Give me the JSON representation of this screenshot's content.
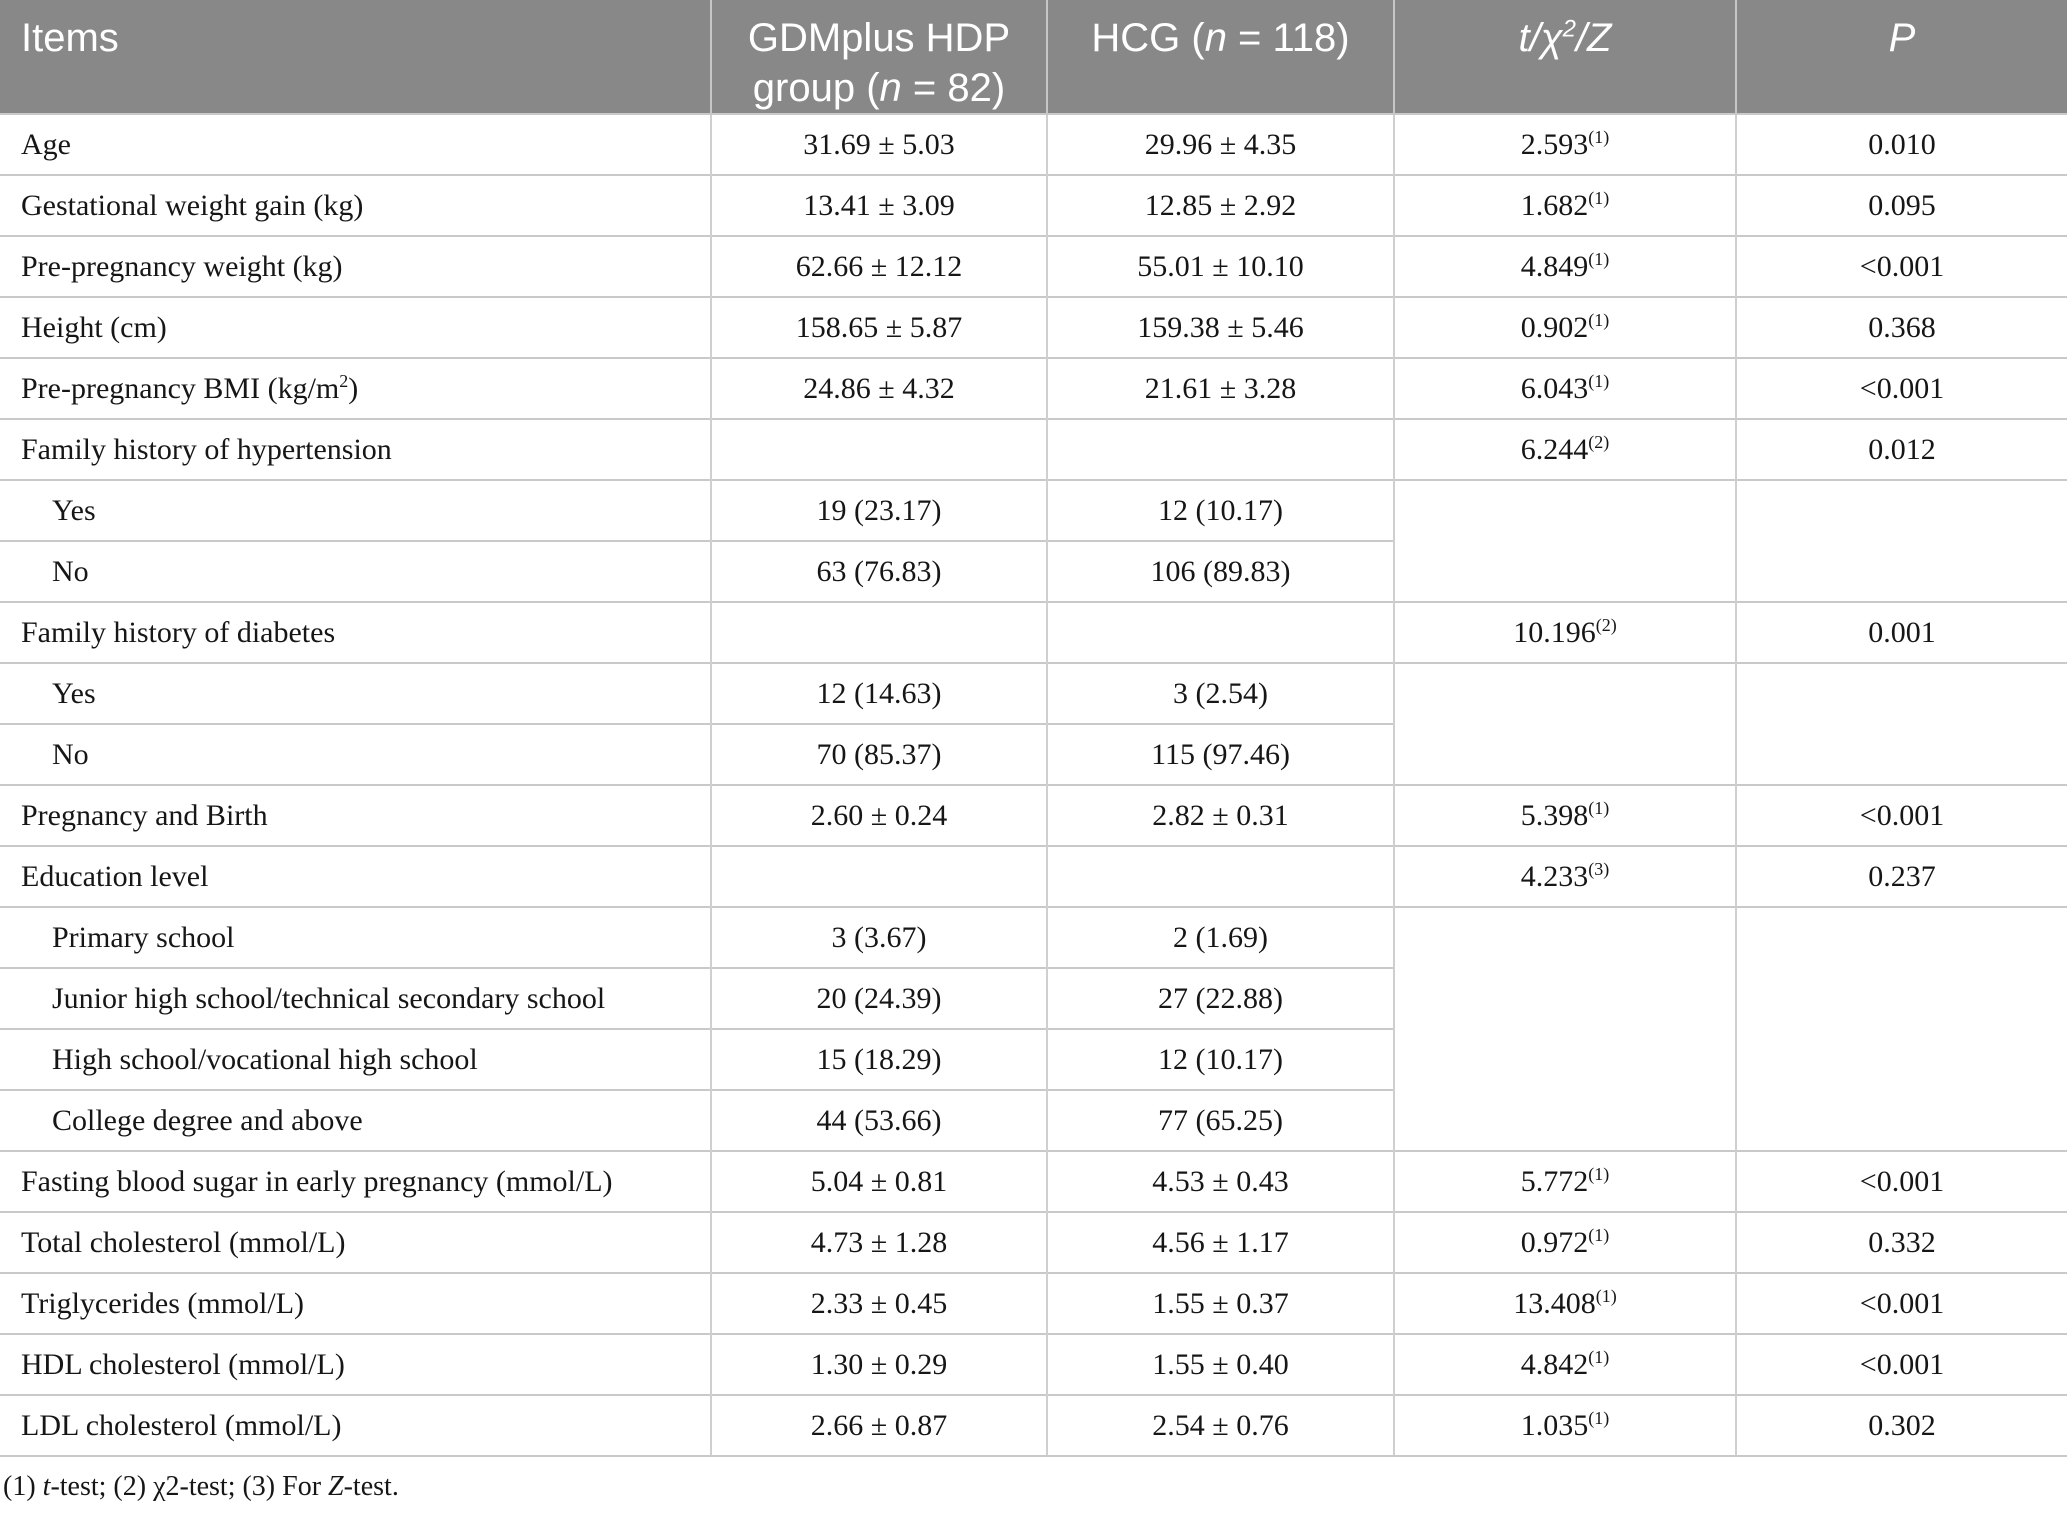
{
  "style": {
    "header_bg": "#888888",
    "header_text": "#ffffff",
    "border_color": "#c9c9c9",
    "body_text": "#161616"
  },
  "table": {
    "header": {
      "items": "Items",
      "gdm": {
        "pre": "GDMplus HDP group (",
        "n": "n",
        "post": " = 82)"
      },
      "hcg": {
        "pre": "HCG (",
        "n": "n",
        "post": " = 118)"
      },
      "stat": {
        "part1": "t/χ",
        "sup": "2",
        "part2": "/Z"
      },
      "p": "P"
    },
    "rows": [
      {
        "label": "Age",
        "gdm": "31.69 ± 5.03",
        "hcg": "29.96 ± 4.35",
        "stat": "2.593",
        "stat_sup": "(1)",
        "p": "0.010"
      },
      {
        "label": "Gestational weight gain (kg)",
        "gdm": "13.41 ± 3.09",
        "hcg": "12.85 ± 2.92",
        "stat": "1.682",
        "stat_sup": "(1)",
        "p": "0.095"
      },
      {
        "label": "Pre-pregnancy weight (kg)",
        "gdm": "62.66 ± 12.12",
        "hcg": "55.01 ± 10.10",
        "stat": "4.849",
        "stat_sup": "(1)",
        "p": "<0.001"
      },
      {
        "label": "Height (cm)",
        "gdm": "158.65 ± 5.87",
        "hcg": "159.38 ± 5.46",
        "stat": "0.902",
        "stat_sup": "(1)",
        "p": "0.368"
      },
      {
        "label": "Pre-pregnancy BMI (kg/m",
        "label_sup": "2",
        "label_post": ")",
        "gdm": "24.86 ± 4.32",
        "hcg": "21.61 ± 3.28",
        "stat": "6.043",
        "stat_sup": "(1)",
        "p": "<0.001"
      },
      {
        "label": "Family history of hypertension",
        "gdm": "",
        "hcg": "",
        "stat": "6.244",
        "stat_sup": "(2)",
        "p": "0.012"
      },
      {
        "label": "Yes",
        "indent": true,
        "gdm": "19 (23.17)",
        "hcg": "12 (10.17)",
        "span": 2
      },
      {
        "label": "No",
        "indent": true,
        "gdm": "63 (76.83)",
        "hcg": "106 (89.83)",
        "merged": true
      },
      {
        "label": "Family history of diabetes",
        "gdm": "",
        "hcg": "",
        "stat": "10.196",
        "stat_sup": "(2)",
        "p": "0.001"
      },
      {
        "label": "Yes",
        "indent": true,
        "gdm": "12 (14.63)",
        "hcg": "3 (2.54)",
        "span": 2
      },
      {
        "label": "No",
        "indent": true,
        "gdm": "70 (85.37)",
        "hcg": "115 (97.46)",
        "merged": true
      },
      {
        "label": "Pregnancy and Birth",
        "gdm": "2.60 ± 0.24",
        "hcg": "2.82 ± 0.31",
        "stat": "5.398",
        "stat_sup": "(1)",
        "p": "<0.001"
      },
      {
        "label": "Education level",
        "gdm": "",
        "hcg": "",
        "stat": "4.233",
        "stat_sup": "(3)",
        "p": "0.237"
      },
      {
        "label": "Primary school",
        "indent": true,
        "gdm": "3 (3.67)",
        "hcg": "2 (1.69)",
        "span": 4
      },
      {
        "label": "Junior high school/technical secondary school",
        "indent": true,
        "gdm": "20 (24.39)",
        "hcg": "27 (22.88)",
        "merged": true
      },
      {
        "label": "High school/vocational high school",
        "indent": true,
        "gdm": "15 (18.29)",
        "hcg": "12 (10.17)",
        "merged": true
      },
      {
        "label": "College degree and above",
        "indent": true,
        "gdm": "44 (53.66)",
        "hcg": "77 (65.25)",
        "merged": true
      },
      {
        "label": "Fasting blood sugar in early pregnancy (mmol/L)",
        "gdm": "5.04 ± 0.81",
        "hcg": "4.53 ± 0.43",
        "stat": "5.772",
        "stat_sup": "(1)",
        "p": "<0.001"
      },
      {
        "label": "Total cholesterol (mmol/L)",
        "gdm": "4.73 ± 1.28",
        "hcg": "4.56 ± 1.17",
        "stat": "0.972",
        "stat_sup": "(1)",
        "p": "0.332"
      },
      {
        "label": "Triglycerides (mmol/L)",
        "gdm": "2.33 ± 0.45",
        "hcg": "1.55 ± 0.37",
        "stat": "13.408",
        "stat_sup": "(1)",
        "p": "<0.001"
      },
      {
        "label": "HDL cholesterol (mmol/L)",
        "gdm": "1.30 ± 0.29",
        "hcg": "1.55 ± 0.40",
        "stat": "4.842",
        "stat_sup": "(1)",
        "p": "<0.001"
      },
      {
        "label": "LDL cholesterol (mmol/L)",
        "gdm": "2.66 ± 0.87",
        "hcg": "2.54 ± 0.76",
        "stat": "1.035",
        "stat_sup": "(1)",
        "p": "0.302"
      }
    ]
  },
  "footnote": {
    "part1": "(1) ",
    "t_italic": "t",
    "part2": "-test; (2) χ2-test; (3) For ",
    "z_italic": "Z",
    "part3": "-test."
  }
}
